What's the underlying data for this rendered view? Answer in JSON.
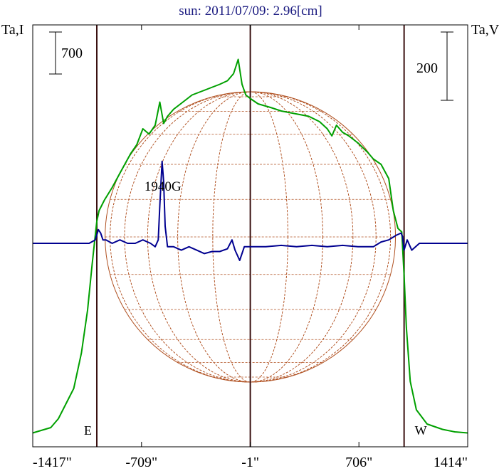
{
  "title": "sun: 2011/07/09: 2.96[cm]",
  "colors": {
    "title": "#1a1a80",
    "intensity": "#00a000",
    "polarization": "#000090",
    "disk": "#b05020",
    "limb_lines": "#3a1010",
    "axis": "#000000"
  },
  "chart_data": {
    "type": "line",
    "title": "sun: 2011/07/09: 2.96[cm]",
    "left_axis_label": "Ta,I",
    "right_axis_label": "Ta,V",
    "left_scale_bar": {
      "label": "700",
      "value": 700
    },
    "right_scale_bar": {
      "label": "200",
      "value": 200
    },
    "x_ticks": [
      {
        "value": -1417,
        "label": "-1417\""
      },
      {
        "value": -709,
        "label": "-709\""
      },
      {
        "value": -1,
        "label": "-1\""
      },
      {
        "value": 706,
        "label": "706\""
      },
      {
        "value": 1414,
        "label": "1414\""
      }
    ],
    "xlim": [
      -1417,
      1414
    ],
    "limb_markers": [
      {
        "label": "E",
        "x": -1000
      },
      {
        "label": "W",
        "x": 1000
      }
    ],
    "center_line_x": -1,
    "annotations": [
      {
        "text": "1940G",
        "x": -570
      }
    ],
    "disk_radius_arcsec": 945,
    "series": [
      {
        "name": "Ta,I",
        "units": "scale-bar relative (scale bar = 700)",
        "x": [
          -1417,
          -1300,
          -1250,
          -1150,
          -1100,
          -1060,
          -1030,
          -1010,
          -1000,
          -985,
          -950,
          -900,
          -850,
          -780,
          -740,
          -700,
          -660,
          -620,
          -590,
          -565,
          -540,
          -500,
          -440,
          -380,
          -320,
          -260,
          -200,
          -150,
          -110,
          -80,
          -55,
          -30,
          -1,
          50,
          130,
          200,
          260,
          320,
          380,
          450,
          500,
          530,
          560,
          600,
          640,
          700,
          760,
          800,
          850,
          900,
          930,
          960,
          985,
          1000,
          1015,
          1040,
          1080,
          1150,
          1250,
          1330,
          1414
        ],
        "y": [
          0.05,
          0.2,
          0.45,
          1.3,
          2.3,
          3.5,
          4.8,
          5.6,
          6.0,
          6.3,
          6.6,
          6.95,
          7.35,
          7.9,
          8.15,
          8.6,
          8.45,
          8.7,
          9.35,
          8.75,
          8.95,
          9.15,
          9.35,
          9.55,
          9.65,
          9.75,
          9.85,
          9.95,
          10.15,
          10.55,
          9.85,
          9.55,
          9.45,
          9.3,
          9.2,
          9.1,
          9.05,
          9.0,
          8.95,
          8.8,
          8.6,
          8.4,
          8.7,
          8.5,
          8.4,
          8.2,
          7.95,
          7.75,
          7.6,
          7.2,
          6.3,
          5.8,
          5.7,
          4.5,
          3.0,
          1.5,
          0.7,
          0.3,
          0.15,
          0.08,
          0.05
        ]
      },
      {
        "name": "Ta,V",
        "units": "scale-bar relative (scale bar = 200)",
        "x": [
          -1417,
          -1050,
          -1010,
          -990,
          -975,
          -960,
          -940,
          -900,
          -850,
          -800,
          -750,
          -700,
          -650,
          -620,
          -600,
          -590,
          -575,
          -565,
          -555,
          -540,
          -500,
          -450,
          -400,
          -350,
          -300,
          -250,
          -200,
          -150,
          -120,
          -100,
          -70,
          -40,
          -20,
          0,
          40,
          100,
          200,
          300,
          400,
          500,
          600,
          700,
          800,
          850,
          900,
          950,
          980,
          990,
          1000,
          1020,
          1050,
          1100,
          1200,
          1300,
          1414
        ],
        "y": [
          0,
          0,
          0.05,
          0.2,
          0.15,
          0.05,
          0.05,
          0.0,
          0.05,
          0.0,
          0.0,
          0.05,
          0.0,
          -0.05,
          0.05,
          0.55,
          1.2,
          0.9,
          0.25,
          -0.05,
          -0.05,
          -0.1,
          -0.05,
          -0.1,
          -0.15,
          -0.12,
          -0.12,
          -0.08,
          0.05,
          -0.1,
          -0.25,
          -0.05,
          -0.05,
          -0.05,
          -0.05,
          -0.05,
          -0.03,
          -0.05,
          -0.03,
          -0.05,
          -0.03,
          -0.05,
          -0.05,
          0.02,
          0.05,
          0.12,
          0.15,
          0.1,
          -0.1,
          0.05,
          -0.1,
          0.0,
          0.0,
          0.0,
          0.0
        ]
      }
    ]
  }
}
